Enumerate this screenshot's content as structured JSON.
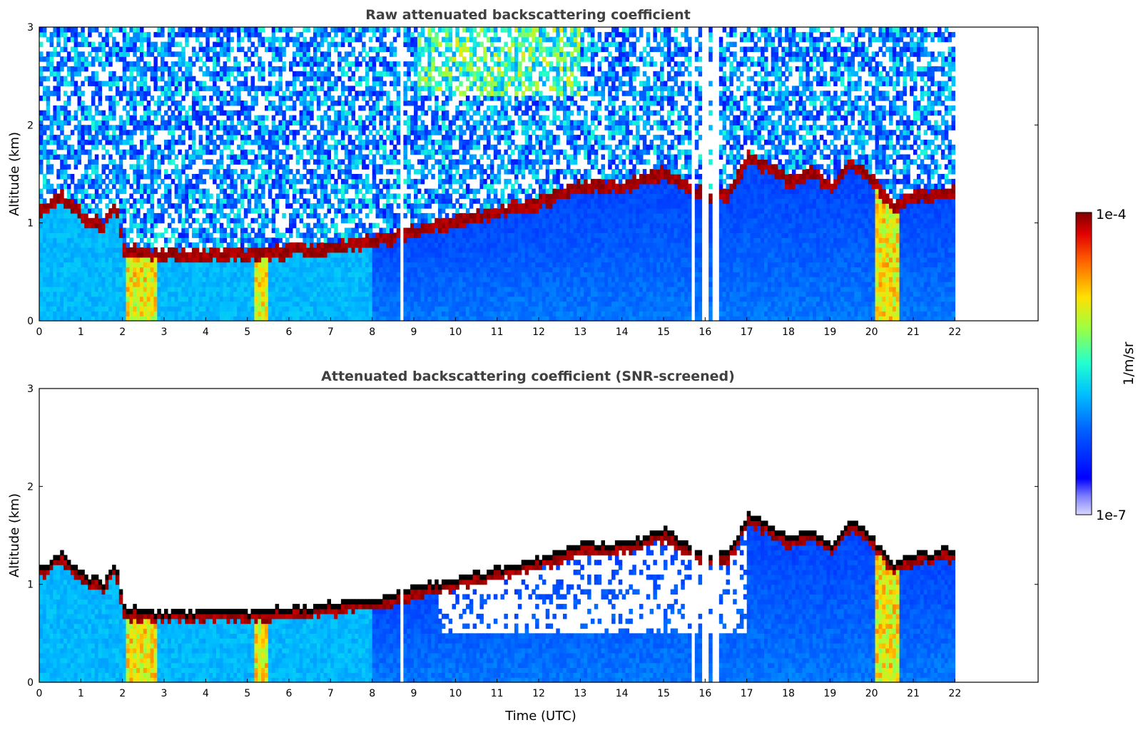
{
  "chart_data": [
    {
      "type": "heatmap",
      "title": "Raw attenuated backscattering coefficient",
      "xlabel": "",
      "ylabel": "Altitude (km)",
      "xlim": [
        0,
        24
      ],
      "ylim": [
        0,
        3
      ],
      "x_ticks": [
        "0",
        "1",
        "2",
        "3",
        "4",
        "5",
        "6",
        "7",
        "8",
        "9",
        "10",
        "11",
        "12",
        "13",
        "14",
        "15",
        "16",
        "17",
        "18",
        "19",
        "20",
        "21",
        "22"
      ],
      "y_ticks": [
        "0",
        "1",
        "2",
        "3"
      ],
      "data_extent_hours": [
        0,
        22
      ],
      "layer_top_km": [
        [
          0.0,
          1.15
        ],
        [
          0.5,
          1.3
        ],
        [
          1.0,
          1.1
        ],
        [
          1.5,
          1.0
        ],
        [
          1.8,
          1.2
        ],
        [
          2.0,
          0.75
        ],
        [
          3.0,
          0.7
        ],
        [
          4.0,
          0.72
        ],
        [
          5.0,
          0.7
        ],
        [
          6.0,
          0.75
        ],
        [
          7.0,
          0.78
        ],
        [
          8.0,
          0.85
        ],
        [
          9.0,
          0.95
        ],
        [
          10.0,
          1.05
        ],
        [
          11.0,
          1.15
        ],
        [
          12.0,
          1.25
        ],
        [
          13.0,
          1.4
        ],
        [
          14.0,
          1.4
        ],
        [
          15.0,
          1.55
        ],
        [
          15.5,
          1.4
        ],
        [
          16.0,
          1.3
        ],
        [
          16.5,
          1.3
        ],
        [
          17.0,
          1.7
        ],
        [
          17.5,
          1.6
        ],
        [
          18.0,
          1.45
        ],
        [
          18.5,
          1.55
        ],
        [
          19.0,
          1.4
        ],
        [
          19.5,
          1.65
        ],
        [
          20.0,
          1.45
        ],
        [
          20.5,
          1.2
        ],
        [
          21.0,
          1.3
        ],
        [
          22.0,
          1.35
        ]
      ],
      "data_gaps_hours": [
        [
          8.6,
          8.7
        ],
        [
          15.6,
          15.7
        ],
        [
          15.85,
          16.0
        ],
        [
          16.1,
          16.25
        ]
      ],
      "color_scale": "jet (log)",
      "noise_present": true
    },
    {
      "type": "heatmap",
      "title": "Attenuated backscattering coefficient (SNR-screened)",
      "xlabel": "Time (UTC)",
      "ylabel": "Altitude (km)",
      "xlim": [
        0,
        24
      ],
      "ylim": [
        0,
        3
      ],
      "x_ticks": [
        "0",
        "1",
        "2",
        "3",
        "4",
        "5",
        "6",
        "7",
        "8",
        "9",
        "10",
        "11",
        "12",
        "13",
        "14",
        "15",
        "16",
        "17",
        "18",
        "19",
        "20",
        "21",
        "22"
      ],
      "y_ticks": [
        "0",
        "1",
        "2",
        "3"
      ],
      "data_extent_hours": [
        0,
        22
      ],
      "color_scale": "jet (log)",
      "noise_present": false
    }
  ],
  "colorbar": {
    "max_label": "1e-4",
    "min_label": "1e-7",
    "unit_label": "1/m/sr"
  },
  "colors": {
    "low": "#0000ff",
    "mid": "#00ffff",
    "high": "#8b0000",
    "axes": "#000000",
    "title": "#404040"
  }
}
